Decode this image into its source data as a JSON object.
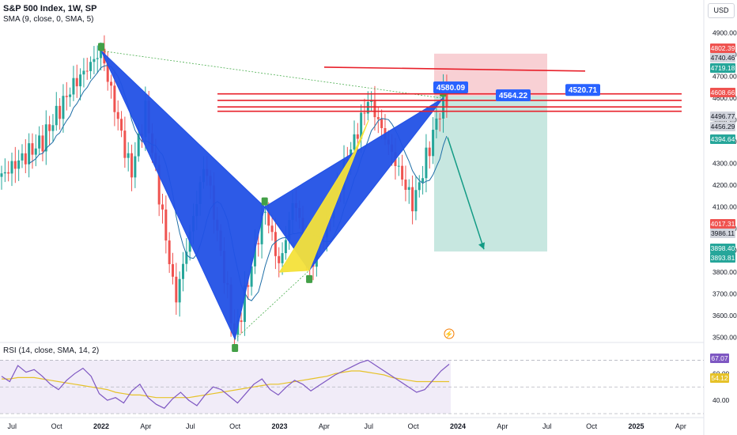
{
  "header": {
    "symbol": "S&P 500 Index, 1W, SP",
    "sma_indicator": "SMA (9, close, 0, SMA, 5)"
  },
  "currency_button": "USD",
  "rsi_title": "RSI (14, close, SMA, 14, 2)",
  "colors": {
    "up_candle": "#26a69a",
    "down_candle": "#ef5350",
    "pattern_blue": "#2251e6",
    "pattern_yellow": "#f4e23a",
    "resistance": "#e8202a",
    "rsi_line": "#7e57c2",
    "rsi_sma": "#e6c229",
    "sma_line": "#1e6ea7"
  },
  "chart_data": [
    {
      "type": "candlestick",
      "title": "S&P 500 Index, 1W, SP",
      "x_ticks": [
        "Jul",
        "Oct",
        "2022",
        "Apr",
        "Jul",
        "Oct",
        "2023",
        "Apr",
        "Jul",
        "Oct",
        "2024",
        "Apr",
        "Jul",
        "Oct",
        "2025",
        "Apr"
      ],
      "y_ticks": [
        3500,
        3600,
        3700,
        3800,
        3900,
        4000,
        4100,
        4200,
        4300,
        4400,
        4500,
        4600,
        4700,
        4800,
        4900
      ],
      "ylim": [
        3480,
        4950
      ],
      "price_labels": [
        {
          "text": "4802.39",
          "kind": "red"
        },
        {
          "text": "4740.46",
          "kind": "grey"
        },
        {
          "text": "4719.18",
          "kind": "green"
        },
        {
          "text": "4608.66",
          "kind": "red"
        },
        {
          "text": "4496.77",
          "kind": "grey"
        },
        {
          "text": "4456.29",
          "kind": "grey"
        },
        {
          "text": "4394.64",
          "kind": "green"
        },
        {
          "text": "4017.31",
          "kind": "red"
        },
        {
          "text": "3986.11",
          "kind": "grey"
        },
        {
          "text": "3898.40",
          "kind": "green"
        },
        {
          "text": "3893.81",
          "kind": "green"
        }
      ],
      "pattern_points": {
        "X": {
          "date": "2022-01",
          "price": 4818
        },
        "A": {
          "date": "2022-10",
          "price": 3491
        },
        "B": {
          "date": "2022-12",
          "price": 4100
        },
        "C": {
          "date": "2023-03",
          "price": 3808
        },
        "D": {
          "date": "2023-12",
          "price": 4600
        }
      },
      "resistance_levels": [
        4735,
        4620,
        4590,
        4560,
        4540
      ],
      "callouts": [
        {
          "text": "4580.09",
          "price": 4590
        },
        {
          "text": "4564.22",
          "price": 4575
        },
        {
          "text": "4520.71",
          "price": 4600
        }
      ],
      "short_position": {
        "entry": 4610,
        "stop": 4805,
        "target": 3895
      }
    },
    {
      "type": "line",
      "title": "RSI (14, close, SMA, 14, 2)",
      "series": [
        {
          "name": "RSI",
          "values": [
            58,
            54,
            66,
            61,
            63,
            58,
            52,
            48,
            55,
            60,
            64,
            58,
            45,
            40,
            42,
            38,
            47,
            52,
            42,
            37,
            34,
            41,
            46,
            40,
            36,
            44,
            50,
            48,
            43,
            38,
            45,
            52,
            56,
            48,
            44,
            50,
            55,
            52,
            47,
            51,
            55,
            59,
            62,
            65,
            68,
            70,
            66,
            62,
            58,
            54,
            50,
            46,
            48,
            55,
            62,
            67
          ]
        },
        {
          "name": "SMA",
          "values": [
            56,
            56,
            57,
            57,
            57,
            56,
            55,
            54,
            53,
            52,
            51,
            50,
            49,
            48,
            46,
            45,
            44,
            44,
            43,
            42,
            42,
            42,
            42,
            42,
            43,
            44,
            45,
            46,
            47,
            48,
            49,
            50,
            51,
            52,
            52,
            53,
            54,
            55,
            56,
            57,
            58,
            60,
            61,
            62,
            62,
            61,
            60,
            59,
            57,
            56,
            55,
            54,
            54,
            54,
            54,
            54
          ]
        }
      ],
      "ylim": [
        30,
        75
      ],
      "y_ticks": [
        40,
        60
      ],
      "value_labels": [
        "67.07",
        "54.12"
      ]
    }
  ]
}
